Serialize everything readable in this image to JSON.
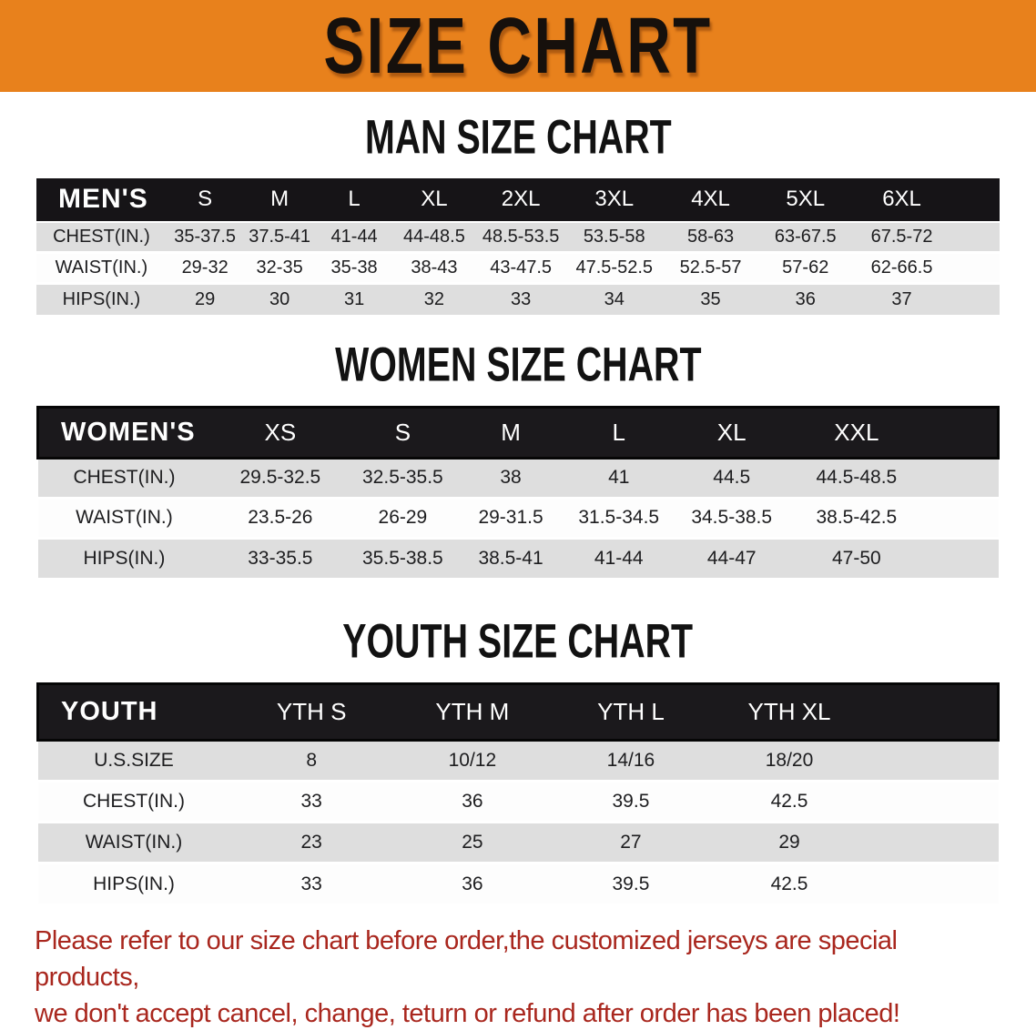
{
  "banner": {
    "title": "SIZE CHART"
  },
  "sections": [
    {
      "id": "men",
      "title": "MAN SIZE CHART",
      "header_label": "MEN'S",
      "columns": [
        "S",
        "M",
        "L",
        "XL",
        "2XL",
        "3XL",
        "4XL",
        "5XL",
        "6XL"
      ],
      "rows": [
        {
          "label": "CHEST(IN.)",
          "values": [
            "35-37.5",
            "37.5-41",
            "41-44",
            "44-48.5",
            "48.5-53.5",
            "53.5-58",
            "58-63",
            "63-67.5",
            "67.5-72"
          ]
        },
        {
          "label": "WAIST(IN.)",
          "values": [
            "29-32",
            "32-35",
            "35-38",
            "38-43",
            "43-47.5",
            "47.5-52.5",
            "52.5-57",
            "57-62",
            "62-66.5"
          ]
        },
        {
          "label": "HIPS(IN.)",
          "values": [
            "29",
            "30",
            "31",
            "32",
            "33",
            "34",
            "35",
            "36",
            "37"
          ]
        }
      ]
    },
    {
      "id": "women",
      "title": "WOMEN SIZE CHART",
      "header_label": "WOMEN'S",
      "columns": [
        "XS",
        "S",
        "M",
        "L",
        "XL",
        "XXL"
      ],
      "rows": [
        {
          "label": "CHEST(IN.)",
          "values": [
            "29.5-32.5",
            "32.5-35.5",
            "38",
            "41",
            "44.5",
            "44.5-48.5"
          ]
        },
        {
          "label": "WAIST(IN.)",
          "values": [
            "23.5-26",
            "26-29",
            "29-31.5",
            "31.5-34.5",
            "34.5-38.5",
            "38.5-42.5"
          ]
        },
        {
          "label": "HIPS(IN.)",
          "values": [
            "33-35.5",
            "35.5-38.5",
            "38.5-41",
            "41-44",
            "44-47",
            "47-50"
          ]
        }
      ]
    },
    {
      "id": "youth",
      "title": "YOUTH SIZE CHART",
      "header_label": "YOUTH",
      "columns": [
        "YTH S",
        "YTH M",
        "YTH L",
        "YTH XL"
      ],
      "rows": [
        {
          "label": "U.S.SIZE",
          "values": [
            "8",
            "10/12",
            "14/16",
            "18/20"
          ]
        },
        {
          "label": "CHEST(IN.)",
          "values": [
            "33",
            "36",
            "39.5",
            "42.5"
          ]
        },
        {
          "label": "WAIST(IN.)",
          "values": [
            "23",
            "25",
            "27",
            "29"
          ]
        },
        {
          "label": "HIPS(IN.)",
          "values": [
            "33",
            "36",
            "39.5",
            "42.5"
          ]
        }
      ]
    }
  ],
  "footer": {
    "line1": "Please refer to our size chart before order,the customized jerseys are special products,",
    "line2": "we don't accept cancel, change, teturn or refund after order has been placed!"
  },
  "colors": {
    "banner_bg": "#E8811C",
    "header_bar": "#161417",
    "row_stripe_gray": "#DEDEDE",
    "footer_text": "#A9271E"
  }
}
